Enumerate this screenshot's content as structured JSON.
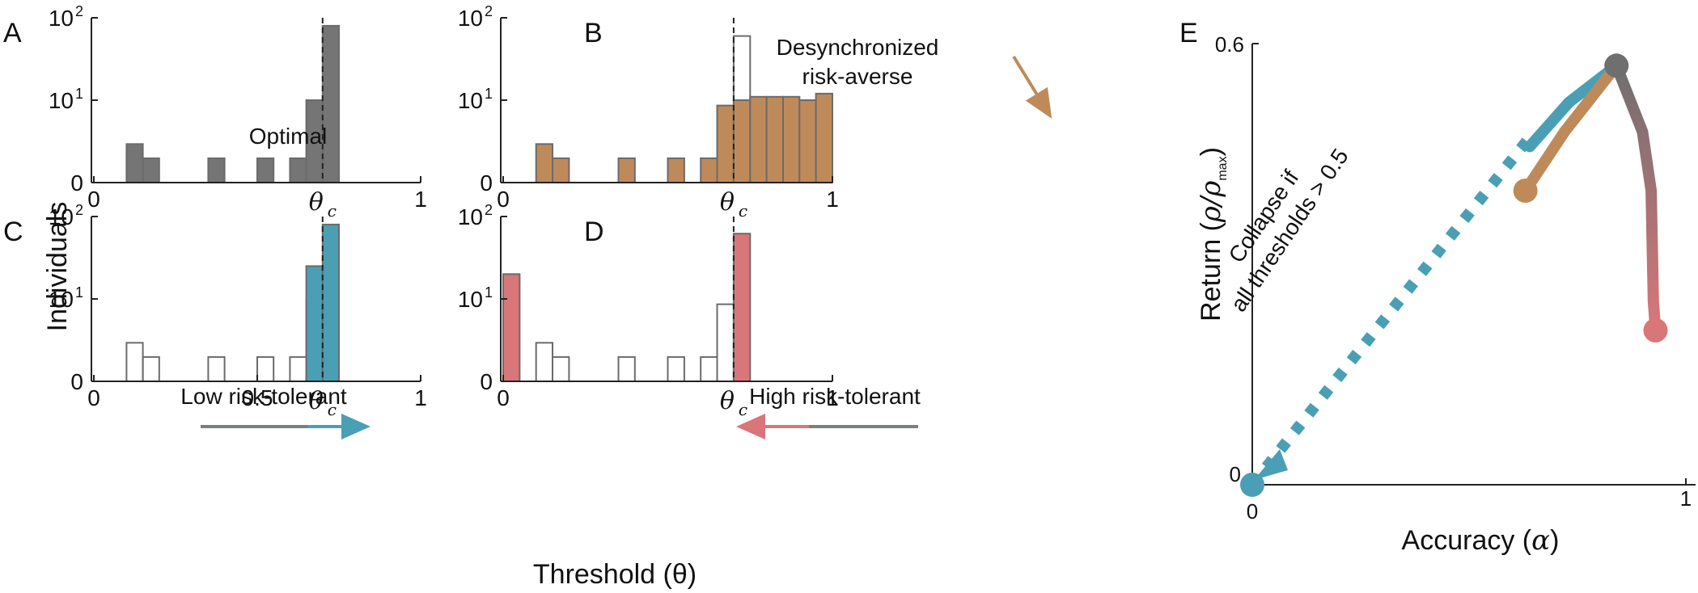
{
  "figure": {
    "shared_ylabel": "Individuals",
    "shared_xlabel": "Threshold (θ)",
    "threshold_label": "θ",
    "threshold_sub": "c",
    "theta_c": 0.7,
    "y_tick_labels": {
      "zero": "0",
      "ten": "10",
      "hundred": "10"
    },
    "y_tick_exponents": {
      "ten": "1",
      "hundred": "2"
    }
  },
  "chart_data": [
    {
      "panel": "A",
      "type": "bar",
      "annotation": "Optimal",
      "x_ticks": [
        "0",
        "1"
      ],
      "xlim": [
        0,
        1
      ],
      "y_scale": "symlog",
      "y_ticks": [
        "0",
        "10^1",
        "10^2"
      ],
      "bin_width": 0.05,
      "series": [
        {
          "style": "filled",
          "color": "#757575",
          "bins": [
            0.1,
            0.15,
            0.35,
            0.5,
            0.6,
            0.65,
            0.7
          ],
          "values": [
            3,
            2,
            2,
            2,
            2,
            10,
            80
          ]
        }
      ]
    },
    {
      "panel": "B",
      "type": "bar",
      "annotation": "Desynchronized risk-averse",
      "x_ticks": [
        "0",
        "1"
      ],
      "xlim": [
        0,
        1
      ],
      "y_scale": "symlog",
      "bin_width": 0.05,
      "series": [
        {
          "style": "outline",
          "bins": [
            0.7
          ],
          "values": [
            60
          ]
        },
        {
          "style": "filled",
          "color": "#bf8a5a",
          "bins": [
            0.1,
            0.15,
            0.35,
            0.5,
            0.6,
            0.65,
            0.7,
            0.75,
            0.8,
            0.85,
            0.9,
            0.95
          ],
          "values": [
            3,
            2,
            2,
            2,
            2,
            9,
            10,
            11,
            11,
            11,
            10,
            12
          ]
        }
      ]
    },
    {
      "panel": "C",
      "type": "bar",
      "annotation": "Low risk-tolerant",
      "x_ticks": [
        "0",
        "0.5",
        "1"
      ],
      "xlim": [
        0,
        1
      ],
      "y_scale": "symlog",
      "bin_width": 0.05,
      "series": [
        {
          "style": "outline",
          "bins": [
            0.1,
            0.15,
            0.35,
            0.5,
            0.6,
            0.65
          ],
          "values": [
            3,
            2,
            2,
            2,
            2,
            10
          ]
        },
        {
          "style": "filled",
          "color": "#4a9fb5",
          "bins": [
            0.65,
            0.7
          ],
          "values": [
            25,
            80
          ]
        }
      ]
    },
    {
      "panel": "D",
      "type": "bar",
      "annotation": "High risk-tolerant",
      "x_ticks": [
        "0",
        "1"
      ],
      "xlim": [
        0,
        1
      ],
      "y_scale": "symlog",
      "bin_width": 0.05,
      "series": [
        {
          "style": "outline",
          "bins": [
            0.1,
            0.15,
            0.35,
            0.5,
            0.6,
            0.65
          ],
          "values": [
            3,
            2,
            2,
            2,
            2,
            9
          ]
        },
        {
          "style": "filled",
          "color": "#d9767a",
          "bins": [
            0.0,
            0.7
          ],
          "values": [
            20,
            62
          ]
        }
      ]
    },
    {
      "panel": "E",
      "type": "line",
      "xlabel_text": "Accuracy",
      "xlabel_symbol": "α",
      "ylabel_text": "Return",
      "ylabel_symbol": "ρ/ρ",
      "ylabel_sub": "max",
      "x_ticks": [
        "0",
        "1"
      ],
      "y_ticks": [
        "0",
        "0.6"
      ],
      "xlim": [
        0,
        1
      ],
      "ylim": [
        0,
        0.6
      ],
      "annotation_line1": "Collapse if",
      "annotation_line2": "all thresholds > 0.5",
      "series": [
        {
          "style": "dashed",
          "color": "#4a9fb5",
          "points": [
            [
              0,
              0
            ],
            [
              0.65,
              0.48
            ]
          ]
        },
        {
          "style": "solid-teal",
          "color": "#4a9fb5",
          "points": [
            [
              0.64,
              0.46
            ],
            [
              0.73,
              0.52
            ],
            [
              0.84,
              0.57
            ]
          ]
        },
        {
          "style": "solid-tan",
          "color": "#bf8a5a",
          "points": [
            [
              0.63,
              0.4
            ],
            [
              0.72,
              0.48
            ],
            [
              0.84,
              0.57
            ]
          ]
        },
        {
          "style": "gradient",
          "color_start": "#6f6f6f",
          "color_end": "#d9767a",
          "points": [
            [
              0.84,
              0.57
            ],
            [
              0.9,
              0.48
            ],
            [
              0.92,
              0.4
            ],
            [
              0.925,
              0.25
            ],
            [
              0.93,
              0.21
            ]
          ]
        }
      ],
      "markers": [
        {
          "point": [
            0,
            0
          ],
          "color": "#4a9fb5"
        },
        {
          "point": [
            0.63,
            0.4
          ],
          "color": "#bf8a5a"
        },
        {
          "point": [
            0.84,
            0.57
          ],
          "color": "#6f6f6f"
        },
        {
          "point": [
            0.93,
            0.21
          ],
          "color": "#d9767a"
        }
      ]
    }
  ],
  "panel_letters": [
    "A",
    "B",
    "C",
    "D",
    "E"
  ]
}
